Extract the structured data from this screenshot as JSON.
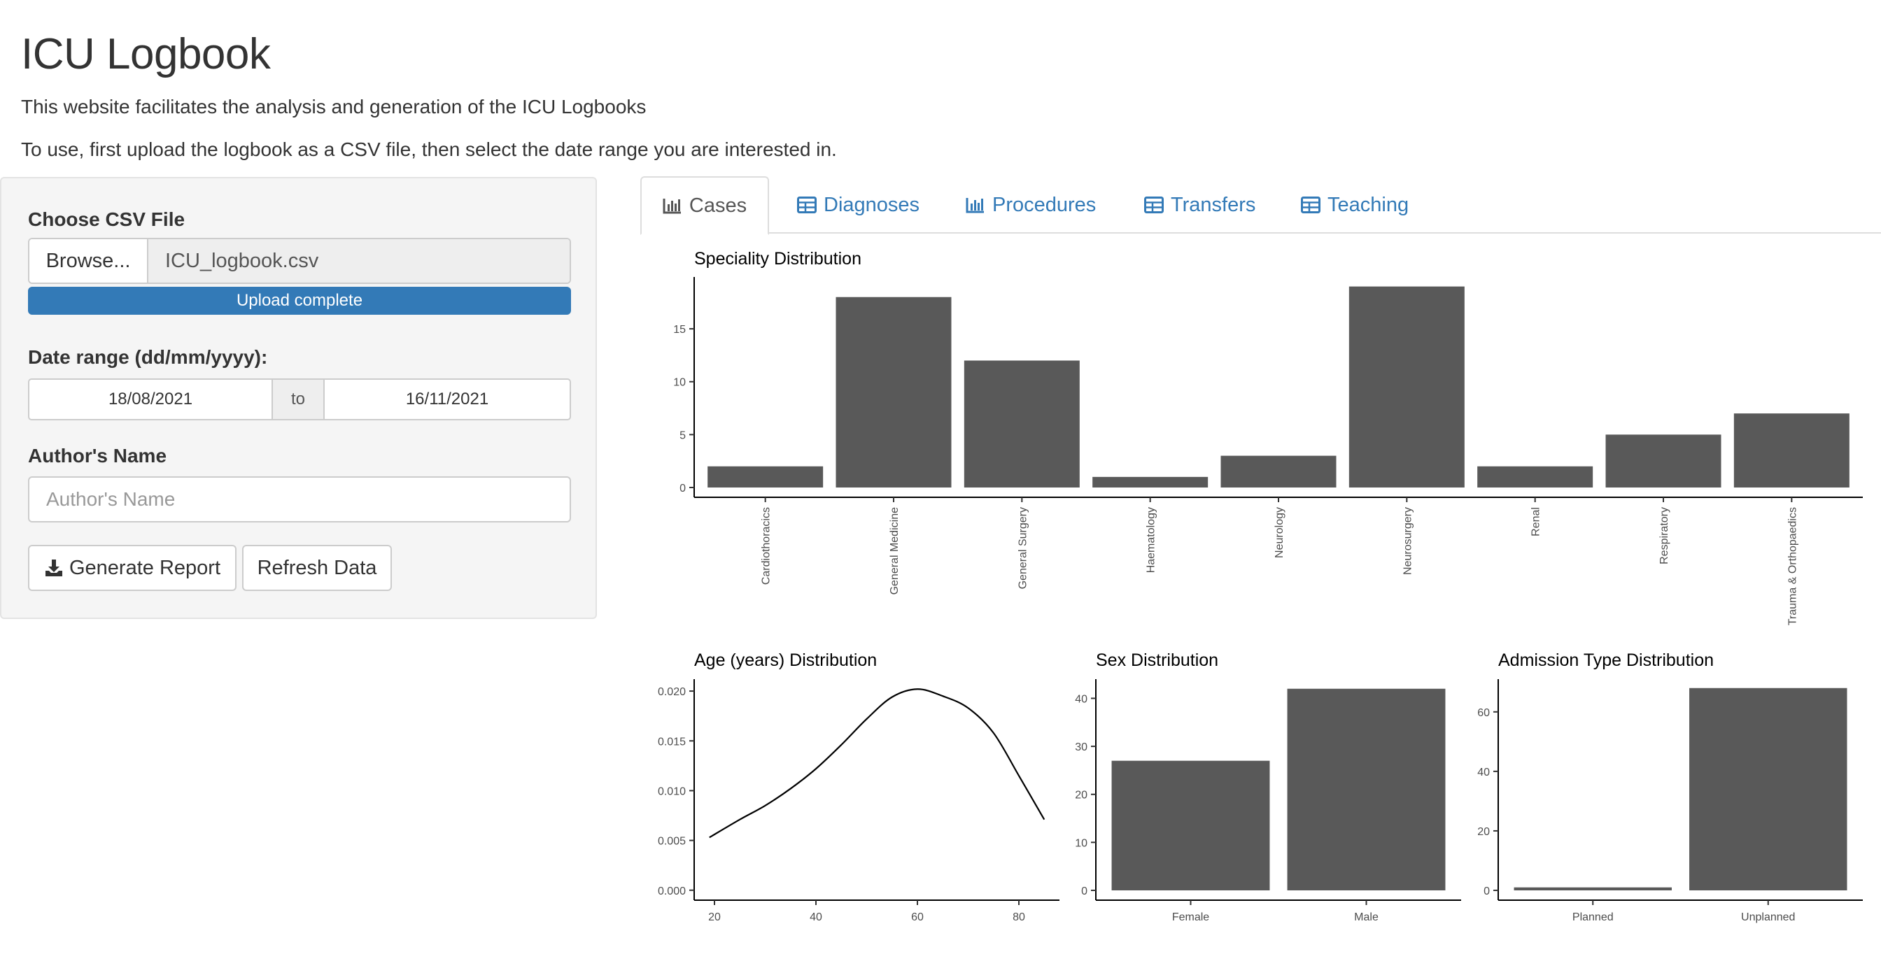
{
  "header": {
    "title": "ICU Logbook",
    "intro_1": "This website facilitates the analysis and generation of the ICU Logbooks",
    "intro_2": "To use, first upload the logbook as a CSV file, then select the date range you are interested in."
  },
  "sidebar": {
    "file_label": "Choose CSV File",
    "browse_label": "Browse...",
    "file_name": "ICU_logbook.csv",
    "upload_status": "Upload complete",
    "upload_progress": 1.0,
    "date_label": "Date range (dd/mm/yyyy):",
    "date_start": "18/08/2021",
    "date_sep": "to",
    "date_end": "16/11/2021",
    "author_label": "Author's Name",
    "author_placeholder": "Author's Name",
    "author_value": "",
    "generate_label": "Generate Report",
    "refresh_label": "Refresh Data"
  },
  "tabs": [
    {
      "label": "Cases",
      "icon": "bar-chart-icon",
      "active": true
    },
    {
      "label": "Diagnoses",
      "icon": "table-icon",
      "active": false
    },
    {
      "label": "Procedures",
      "icon": "bar-chart-icon",
      "active": false
    },
    {
      "label": "Transfers",
      "icon": "table-icon",
      "active": false
    },
    {
      "label": "Teaching",
      "icon": "table-icon",
      "active": false
    }
  ],
  "colors": {
    "accent": "#337ab7",
    "bar_fill": "#595959",
    "panel_bg": "#f5f5f5"
  },
  "chart_data": [
    {
      "type": "bar",
      "title": "Speciality Distribution",
      "categories": [
        "Cardiothoracics",
        "General Medicine",
        "General Surgery",
        "Haematology",
        "Neurology",
        "Neurosurgery",
        "Renal",
        "Respiratory",
        "Trauma & Orthopaedics"
      ],
      "values": [
        2,
        18,
        12,
        1,
        3,
        19,
        2,
        5,
        7
      ],
      "yticks": [
        0,
        5,
        10,
        15
      ],
      "ylim": [
        0,
        19.9
      ],
      "xlabel": "",
      "ylabel": "",
      "grid": false
    },
    {
      "type": "line",
      "title": "Age (years) Distribution",
      "x": [
        19,
        25,
        30,
        35,
        40,
        45,
        50,
        55,
        60,
        65,
        70,
        75,
        80,
        85
      ],
      "y": [
        0.0053,
        0.0071,
        0.0085,
        0.0102,
        0.0122,
        0.0146,
        0.0172,
        0.0194,
        0.0202,
        0.0195,
        0.0183,
        0.0158,
        0.0115,
        0.0071
      ],
      "xticks": [
        20,
        40,
        60,
        80
      ],
      "yticks": [
        "0.000",
        "0.005",
        "0.010",
        "0.015",
        "0.020"
      ],
      "xlim": [
        16,
        88
      ],
      "ylim": [
        -0.001,
        0.0212
      ],
      "xlabel": "",
      "ylabel": "",
      "grid": false
    },
    {
      "type": "bar",
      "title": "Sex Distribution",
      "categories": [
        "Female",
        "Male"
      ],
      "values": [
        27,
        42
      ],
      "yticks": [
        0,
        10,
        20,
        30,
        40
      ],
      "ylim": [
        0,
        44
      ],
      "xlabel": "",
      "ylabel": "",
      "grid": false
    },
    {
      "type": "bar",
      "title": "Admission Type Distribution",
      "categories": [
        "Planned",
        "Unplanned"
      ],
      "values": [
        1,
        68
      ],
      "yticks": [
        0,
        20,
        40,
        60
      ],
      "ylim": [
        0,
        71
      ],
      "xlabel": "",
      "ylabel": "",
      "grid": false
    }
  ]
}
